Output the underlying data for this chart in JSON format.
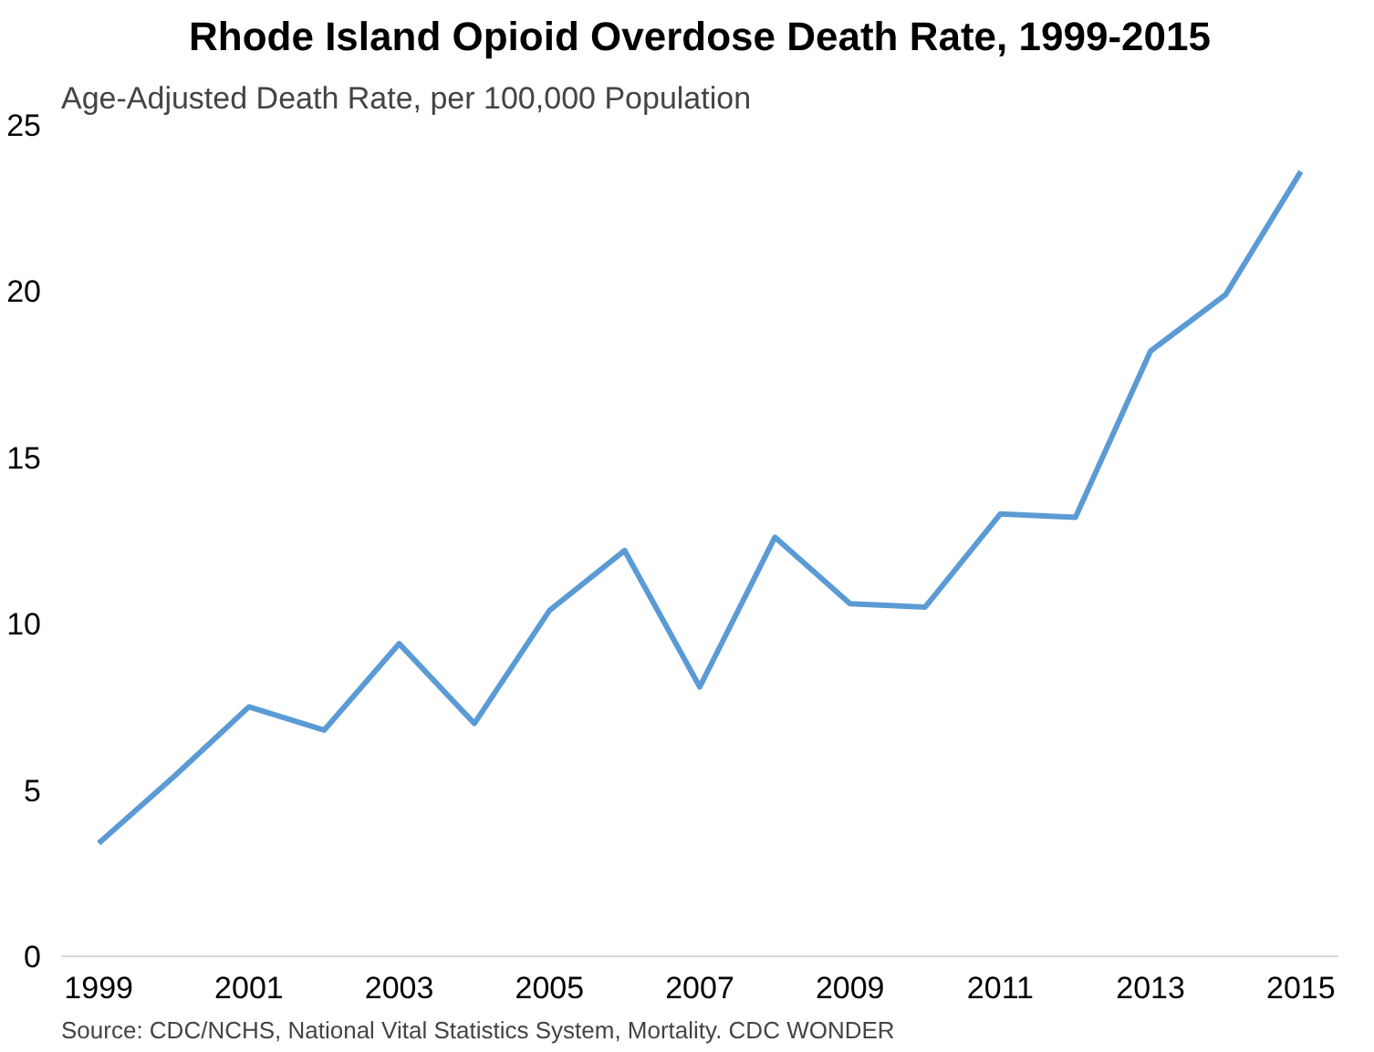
{
  "chart_data": {
    "type": "line",
    "title": "Rhode Island Opioid Overdose Death Rate, 1999-2015",
    "ylabel": "Age-Adjusted Death Rate, per 100,000 Population",
    "x": [
      1999,
      2000,
      2001,
      2002,
      2003,
      2004,
      2005,
      2006,
      2007,
      2008,
      2009,
      2010,
      2011,
      2012,
      2013,
      2014,
      2015
    ],
    "series": [
      {
        "color": "#5b9bd5",
        "values": [
          3.4,
          5.4,
          7.5,
          6.8,
          9.4,
          7.0,
          10.4,
          12.2,
          8.1,
          12.6,
          10.6,
          10.5,
          13.3,
          13.2,
          18.2,
          19.9,
          23.6
        ]
      }
    ],
    "xlim": [
      1998.5,
      2015.5
    ],
    "xticks": [
      1999,
      2001,
      2003,
      2005,
      2007,
      2009,
      2011,
      2013,
      2015
    ],
    "ylim": [
      0,
      25
    ],
    "yticks": [
      0,
      5,
      10,
      15,
      20,
      25
    ],
    "grid": false,
    "annotations": [
      "Source:  CDC/NCHS, National Vital Statistics System, Mortality. CDC WONDER"
    ]
  }
}
